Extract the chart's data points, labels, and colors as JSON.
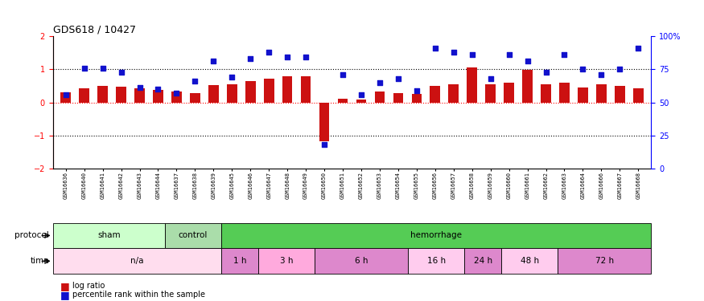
{
  "title": "GDS618 / 10427",
  "samples": [
    "GSM16636",
    "GSM16640",
    "GSM16641",
    "GSM16642",
    "GSM16643",
    "GSM16644",
    "GSM16637",
    "GSM16638",
    "GSM16639",
    "GSM16645",
    "GSM16646",
    "GSM16647",
    "GSM16648",
    "GSM16649",
    "GSM16650",
    "GSM16651",
    "GSM16652",
    "GSM16653",
    "GSM16654",
    "GSM16655",
    "GSM16656",
    "GSM16657",
    "GSM16658",
    "GSM16659",
    "GSM16660",
    "GSM16661",
    "GSM16662",
    "GSM16663",
    "GSM16664",
    "GSM16666",
    "GSM16667",
    "GSM16668"
  ],
  "log_ratio": [
    0.3,
    0.42,
    0.5,
    0.48,
    0.42,
    0.38,
    0.32,
    0.28,
    0.52,
    0.55,
    0.65,
    0.72,
    0.8,
    0.78,
    -1.18,
    0.12,
    0.08,
    0.32,
    0.28,
    0.25,
    0.5,
    0.55,
    1.05,
    0.55,
    0.6,
    0.98,
    0.55,
    0.6,
    0.46,
    0.55,
    0.5,
    0.42
  ],
  "percentile_rank": [
    56,
    76,
    76,
    73,
    61,
    60,
    57,
    66,
    81,
    69,
    83,
    88,
    84,
    84,
    18,
    71,
    56,
    65,
    68,
    59,
    91,
    88,
    86,
    68,
    86,
    81,
    73,
    86,
    75,
    71,
    75,
    91
  ],
  "protocol_groups": [
    {
      "label": "sham",
      "start": 0,
      "end": 6,
      "color": "#ccffcc"
    },
    {
      "label": "control",
      "start": 6,
      "end": 9,
      "color": "#aaddaa"
    },
    {
      "label": "hemorrhage",
      "start": 9,
      "end": 32,
      "color": "#55cc55"
    }
  ],
  "time_groups": [
    {
      "label": "n/a",
      "start": 0,
      "end": 9,
      "color": "#ffddee"
    },
    {
      "label": "1 h",
      "start": 9,
      "end": 11,
      "color": "#dd88cc"
    },
    {
      "label": "3 h",
      "start": 11,
      "end": 14,
      "color": "#ffaadd"
    },
    {
      "label": "6 h",
      "start": 14,
      "end": 19,
      "color": "#dd88cc"
    },
    {
      "label": "16 h",
      "start": 19,
      "end": 22,
      "color": "#ffccee"
    },
    {
      "label": "24 h",
      "start": 22,
      "end": 24,
      "color": "#dd88cc"
    },
    {
      "label": "48 h",
      "start": 24,
      "end": 27,
      "color": "#ffccee"
    },
    {
      "label": "72 h",
      "start": 27,
      "end": 32,
      "color": "#dd88cc"
    }
  ],
  "bar_color": "#CC1111",
  "dot_color": "#1111CC",
  "ylim_left": [
    -2,
    2
  ],
  "ylim_right": [
    0,
    100
  ],
  "left_yticks": [
    -2,
    -1,
    0,
    1,
    2
  ],
  "right_yticks": [
    0,
    25,
    50,
    75,
    100
  ],
  "right_yticklabels": [
    "0",
    "25",
    "50",
    "75",
    "100%"
  ],
  "dotted_lines": [
    -1,
    0,
    1
  ]
}
